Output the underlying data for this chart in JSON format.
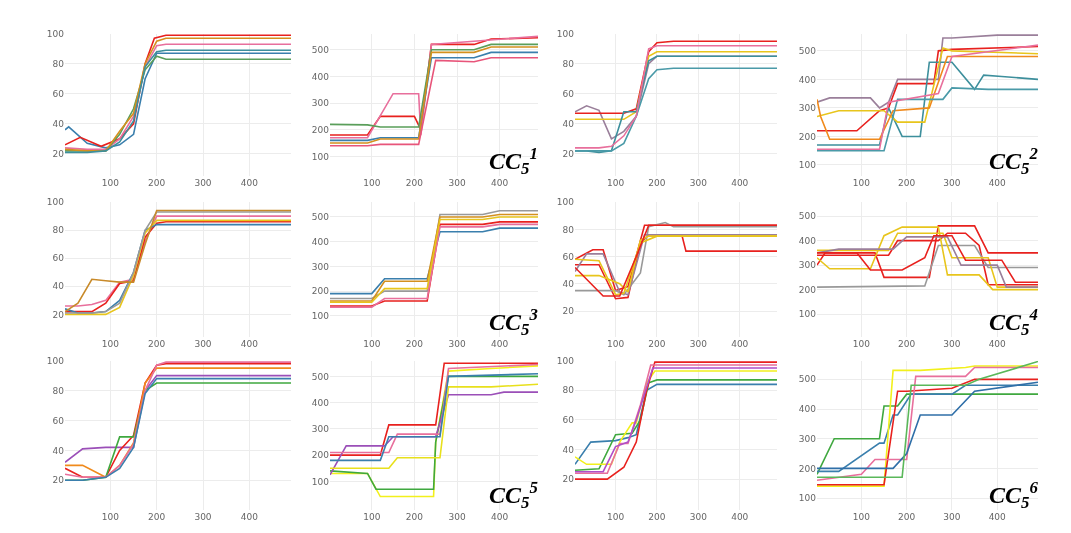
{
  "chart_data": [
    {
      "type": "line",
      "xlim": [
        2,
        490
      ],
      "xticks": [
        100,
        200,
        300,
        400
      ],
      "ylim": [
        5,
        100
      ],
      "yticks": [
        20,
        40,
        60,
        80,
        100
      ],
      "grid": true,
      "series": [
        {
          "color": "#3a7fad",
          "x": [
            2,
            10,
            50,
            90,
            120,
            150,
            175,
            200,
            220,
            490
          ],
          "values": [
            36,
            38,
            27,
            24,
            26,
            33,
            70,
            87,
            87,
            87
          ]
        },
        {
          "color": "#e8211e",
          "x": [
            2,
            35,
            80,
            120,
            150,
            175,
            195,
            220,
            490
          ],
          "values": [
            26,
            31,
            25,
            30,
            40,
            80,
            97,
            99,
            99
          ]
        },
        {
          "color": "#e86f9c",
          "x": [
            2,
            50,
            90,
            120,
            150,
            175,
            200,
            220,
            490
          ],
          "values": [
            24,
            23,
            23,
            30,
            45,
            78,
            92,
            93,
            93
          ]
        },
        {
          "color": "#5a9e5a",
          "x": [
            2,
            50,
            90,
            120,
            150,
            175,
            200,
            220,
            490
          ],
          "values": [
            22,
            22,
            22,
            33,
            50,
            76,
            85,
            83,
            83
          ]
        },
        {
          "color": "#d4901e",
          "x": [
            2,
            50,
            90,
            120,
            150,
            175,
            200,
            220,
            490
          ],
          "values": [
            23,
            22,
            22,
            35,
            47,
            80,
            95,
            97,
            97
          ]
        },
        {
          "color": "#3d8f9c",
          "x": [
            2,
            50,
            90,
            120,
            150,
            175,
            200,
            220,
            490
          ],
          "values": [
            21,
            21,
            22,
            28,
            42,
            78,
            88,
            89,
            89
          ]
        }
      ]
    },
    {
      "type": "line",
      "xlim": [
        2,
        490
      ],
      "xticks": [
        100,
        200,
        300,
        400
      ],
      "ylim": [
        25,
        560
      ],
      "yticks": [
        100,
        200,
        300,
        400,
        500
      ],
      "grid": true,
      "annotations": [
        "CC$_{5}$$^{1}$"
      ],
      "series": [
        {
          "color": "#e8211e",
          "x": [
            2,
            90,
            120,
            200,
            215,
            240,
            260,
            340,
            380,
            490
          ],
          "values": [
            180,
            180,
            250,
            250,
            200,
            520,
            520,
            520,
            540,
            545
          ]
        },
        {
          "color": "#e86f9c",
          "x": [
            2,
            90,
            150,
            210,
            215,
            240,
            490
          ],
          "values": [
            170,
            170,
            335,
            335,
            180,
            520,
            550
          ]
        },
        {
          "color": "#5a9e5a",
          "x": [
            2,
            90,
            120,
            210,
            240,
            340,
            380,
            490
          ],
          "values": [
            220,
            218,
            210,
            210,
            500,
            500,
            520,
            520
          ]
        },
        {
          "color": "#3a7fad",
          "x": [
            2,
            90,
            120,
            210,
            240,
            340,
            380,
            490
          ],
          "values": [
            160,
            160,
            170,
            170,
            470,
            470,
            490,
            490
          ]
        },
        {
          "color": "#d4901e",
          "x": [
            2,
            90,
            120,
            210,
            240,
            340,
            380,
            490
          ],
          "values": [
            150,
            150,
            165,
            165,
            490,
            490,
            510,
            510
          ]
        },
        {
          "color": "#e8557a",
          "x": [
            2,
            90,
            120,
            210,
            250,
            340,
            380,
            490
          ],
          "values": [
            140,
            140,
            145,
            145,
            460,
            455,
            470,
            470
          ]
        }
      ]
    },
    {
      "type": "line",
      "xlim": [
        2,
        490
      ],
      "xticks": [
        100,
        200,
        300,
        400
      ],
      "ylim": [
        5,
        100
      ],
      "yticks": [
        20,
        40,
        60,
        80,
        100
      ],
      "grid": true,
      "series": [
        {
          "color": "#9a7f9a",
          "x": [
            2,
            30,
            60,
            90,
            120,
            150,
            180,
            200,
            240,
            490
          ],
          "values": [
            48,
            52,
            49,
            30,
            35,
            45,
            80,
            85,
            85,
            85
          ]
        },
        {
          "color": "#e8211e",
          "x": [
            2,
            30,
            60,
            90,
            120,
            150,
            180,
            200,
            240,
            490
          ],
          "values": [
            47,
            47,
            47,
            47,
            47,
            50,
            88,
            94,
            95,
            95
          ]
        },
        {
          "color": "#e8c51c",
          "x": [
            2,
            30,
            60,
            90,
            120,
            150,
            180,
            200,
            240,
            490
          ],
          "values": [
            43,
            43,
            43,
            43,
            43,
            48,
            85,
            88,
            88,
            88
          ]
        },
        {
          "color": "#3d8f9c",
          "x": [
            2,
            30,
            60,
            90,
            120,
            150,
            180,
            200,
            240,
            490
          ],
          "values": [
            22,
            22,
            21,
            22,
            48,
            48,
            82,
            85,
            85,
            85
          ]
        },
        {
          "color": "#4a9aa8",
          "x": [
            2,
            30,
            60,
            90,
            120,
            150,
            180,
            200,
            240,
            490
          ],
          "values": [
            22,
            22,
            22,
            22,
            27,
            45,
            70,
            76,
            77,
            77
          ]
        },
        {
          "color": "#e86f9c",
          "x": [
            2,
            30,
            60,
            90,
            120,
            150,
            180,
            200,
            240,
            490
          ],
          "values": [
            24,
            24,
            24,
            25,
            32,
            45,
            90,
            92,
            92,
            92
          ]
        }
      ]
    },
    {
      "type": "line",
      "xlim": [
        2,
        490
      ],
      "xticks": [
        100,
        200,
        300,
        400
      ],
      "ylim": [
        60,
        560
      ],
      "yticks": [
        100,
        200,
        300,
        400,
        500
      ],
      "grid": true,
      "annotations": [
        "CC$_{5}$$^{2}$"
      ],
      "series": [
        {
          "color": "#9a7f9a",
          "x": [
            2,
            30,
            120,
            140,
            160,
            180,
            270,
            280,
            300,
            400,
            490
          ],
          "values": [
            320,
            335,
            335,
            300,
            320,
            400,
            400,
            545,
            545,
            555,
            555
          ]
        },
        {
          "color": "#e8211e",
          "x": [
            2,
            90,
            140,
            160,
            180,
            260,
            270,
            300,
            490
          ],
          "values": [
            220,
            220,
            290,
            300,
            385,
            385,
            500,
            505,
            515
          ]
        },
        {
          "color": "#3d8f9c",
          "x": [
            2,
            140,
            160,
            190,
            230,
            250,
            300,
            350,
            370,
            410,
            490
          ],
          "values": [
            170,
            170,
            300,
            200,
            200,
            460,
            460,
            365,
            415,
            410,
            400
          ]
        },
        {
          "color": "#e8c51c",
          "x": [
            2,
            50,
            110,
            150,
            180,
            240,
            280,
            300,
            490
          ],
          "values": [
            270,
            290,
            290,
            290,
            250,
            250,
            510,
            500,
            490
          ]
        },
        {
          "color": "#f08a1c",
          "x": [
            2,
            10,
            30,
            140,
            170,
            250,
            290,
            490
          ],
          "values": [
            330,
            270,
            190,
            190,
            290,
            300,
            480,
            480
          ]
        },
        {
          "color": "#4a9aa8",
          "x": [
            2,
            150,
            180,
            280,
            300,
            380,
            490
          ],
          "values": [
            150,
            150,
            330,
            330,
            370,
            365,
            365
          ]
        },
        {
          "color": "#e86f9c",
          "x": [
            2,
            140,
            160,
            270,
            300,
            490
          ],
          "values": [
            155,
            155,
            320,
            350,
            480,
            520
          ]
        }
      ]
    },
    {
      "type": "line",
      "xlim": [
        2,
        490
      ],
      "xticks": [
        100,
        200,
        300,
        400
      ],
      "ylim": [
        4,
        100
      ],
      "yticks": [
        20,
        40,
        60,
        80,
        100
      ],
      "grid": true,
      "series": [
        {
          "color": "#e86f9c",
          "x": [
            2,
            30,
            60,
            90,
            120,
            150,
            175,
            200,
            220,
            490
          ],
          "values": [
            26,
            26,
            27,
            30,
            43,
            45,
            72,
            90,
            90,
            90
          ]
        },
        {
          "color": "#e8211e",
          "x": [
            2,
            30,
            60,
            90,
            120,
            150,
            175,
            200,
            220,
            490
          ],
          "values": [
            22,
            22,
            22,
            28,
            42,
            44,
            75,
            85,
            86,
            86
          ]
        },
        {
          "color": "#3a7fad",
          "x": [
            2,
            30,
            60,
            90,
            120,
            150,
            175,
            200,
            220,
            490
          ],
          "values": [
            24,
            21,
            21,
            22,
            30,
            50,
            80,
            84,
            84,
            84
          ]
        },
        {
          "color": "#e8c51c",
          "x": [
            2,
            30,
            60,
            90,
            120,
            150,
            175,
            200,
            220,
            490
          ],
          "values": [
            20,
            20,
            20,
            20,
            25,
            48,
            78,
            87,
            87,
            87
          ]
        },
        {
          "color": "#999999",
          "x": [
            2,
            30,
            60,
            90,
            120,
            150,
            175,
            200,
            220,
            490
          ],
          "values": [
            21,
            21,
            21,
            22,
            28,
            50,
            80,
            93,
            93,
            93
          ]
        },
        {
          "color": "#c88a2a",
          "x": [
            2,
            30,
            60,
            90,
            120,
            150,
            175,
            200,
            220,
            490
          ],
          "values": [
            22,
            28,
            45,
            44,
            43,
            43,
            70,
            94,
            94,
            94
          ]
        }
      ]
    },
    {
      "type": "line",
      "xlim": [
        2,
        490
      ],
      "xticks": [
        100,
        200,
        300,
        400
      ],
      "ylim": [
        15,
        560
      ],
      "yticks": [
        100,
        200,
        300,
        400,
        500
      ],
      "grid": true,
      "annotations": [
        "CC$_{5}$$^{3}$"
      ],
      "series": [
        {
          "color": "#3a7fad",
          "x": [
            2,
            100,
            130,
            230,
            260,
            360,
            400,
            490
          ],
          "values": [
            190,
            190,
            250,
            250,
            440,
            440,
            455,
            455
          ]
        },
        {
          "color": "#999999",
          "x": [
            2,
            100,
            130,
            230,
            260,
            360,
            400,
            490
          ],
          "values": [
            170,
            170,
            200,
            200,
            510,
            510,
            525,
            525
          ]
        },
        {
          "color": "#e8211e",
          "x": [
            2,
            100,
            130,
            230,
            260,
            360,
            400,
            490
          ],
          "values": [
            140,
            140,
            160,
            160,
            470,
            470,
            480,
            480
          ]
        },
        {
          "color": "#d4901e",
          "x": [
            2,
            100,
            130,
            230,
            260,
            360,
            400,
            490
          ],
          "values": [
            160,
            160,
            240,
            240,
            500,
            500,
            510,
            510
          ]
        },
        {
          "color": "#e86f9c",
          "x": [
            2,
            100,
            130,
            230,
            260,
            360,
            400,
            490
          ],
          "values": [
            135,
            135,
            170,
            170,
            460,
            460,
            470,
            470
          ]
        },
        {
          "color": "#e8c51c",
          "x": [
            2,
            100,
            130,
            230,
            260,
            360,
            400,
            490
          ],
          "values": [
            155,
            155,
            210,
            210,
            490,
            490,
            500,
            500
          ]
        }
      ]
    },
    {
      "type": "line",
      "xlim": [
        2,
        490
      ],
      "xticks": [
        100,
        200,
        300,
        400
      ],
      "ylim": [
        1,
        100
      ],
      "yticks": [
        20,
        40,
        60,
        80,
        100
      ],
      "grid": true,
      "series": [
        {
          "color": "#e8211e",
          "x": [
            2,
            45,
            70,
            100,
            130,
            170,
            270,
            280,
            490
          ],
          "values": [
            58,
            65,
            65,
            35,
            38,
            83,
            83,
            83,
            83
          ]
        },
        {
          "color": "#e8211e",
          "x": [
            2,
            60,
            100,
            130,
            160,
            180,
            260,
            270,
            490
          ],
          "values": [
            54,
            54,
            29,
            30,
            70,
            76,
            76,
            64,
            64
          ]
        },
        {
          "color": "#999999",
          "x": [
            2,
            100,
            120,
            160,
            180,
            220,
            240,
            490
          ],
          "values": [
            35,
            35,
            32,
            48,
            82,
            85,
            82,
            82
          ]
        },
        {
          "color": "#9a7f9a",
          "x": [
            2,
            30,
            70,
            110,
            130,
            170,
            490
          ],
          "values": [
            49,
            62,
            62,
            34,
            32,
            76,
            76
          ]
        },
        {
          "color": "#e8c51c",
          "x": [
            2,
            60,
            110,
            130,
            160,
            180,
            490
          ],
          "values": [
            46,
            46,
            40,
            34,
            72,
            75,
            75
          ]
        },
        {
          "color": "#e8c51c",
          "x": [
            2,
            60,
            100,
            120,
            160,
            200,
            490
          ],
          "values": [
            58,
            57,
            32,
            33,
            70,
            75,
            75
          ]
        },
        {
          "color": "#e8211e",
          "x": [
            2,
            70,
            110,
            150,
            180,
            490
          ],
          "values": [
            52,
            31,
            31,
            60,
            83,
            83
          ]
        }
      ]
    },
    {
      "type": "line",
      "xlim": [
        2,
        490
      ],
      "xticks": [
        100,
        200,
        300,
        400
      ],
      "ylim": [
        7,
        557
      ],
      "yticks": [
        100,
        200,
        300,
        400,
        500
      ],
      "grid": true,
      "annotations": [
        "CC$_{5}$$^{4}$"
      ],
      "series": [
        {
          "color": "#e8211e",
          "x": [
            2,
            20,
            130,
            150,
            250,
            270,
            350,
            380,
            490
          ],
          "values": [
            300,
            350,
            350,
            250,
            250,
            460,
            460,
            350,
            350
          ]
        },
        {
          "color": "#e8211e",
          "x": [
            2,
            160,
            180,
            270,
            290,
            330,
            360,
            380,
            490
          ],
          "values": [
            340,
            340,
            400,
            400,
            430,
            430,
            380,
            220,
            220
          ]
        },
        {
          "color": "#999999",
          "x": [
            2,
            240,
            270,
            350,
            380,
            490
          ],
          "values": [
            210,
            215,
            380,
            380,
            290,
            290
          ]
        },
        {
          "color": "#e8c51c",
          "x": [
            2,
            30,
            120,
            150,
            190,
            270,
            290,
            360,
            390,
            490
          ],
          "values": [
            330,
            285,
            285,
            420,
            455,
            455,
            260,
            260,
            200,
            200
          ]
        },
        {
          "color": "#e8c51c",
          "x": [
            2,
            160,
            180,
            280,
            300,
            380,
            400,
            490
          ],
          "values": [
            360,
            360,
            430,
            430,
            330,
            330,
            210,
            210
          ]
        },
        {
          "color": "#9a7f9a",
          "x": [
            2,
            50,
            170,
            200,
            290,
            320,
            400,
            420,
            490
          ],
          "values": [
            350,
            365,
            365,
            415,
            415,
            300,
            300,
            210,
            210
          ]
        },
        {
          "color": "#e8211e",
          "x": [
            2,
            90,
            120,
            190,
            240,
            260,
            300,
            330,
            410,
            440,
            490
          ],
          "values": [
            350,
            350,
            280,
            280,
            330,
            420,
            420,
            320,
            320,
            230,
            230
          ]
        }
      ]
    },
    {
      "type": "line",
      "xlim": [
        2,
        490
      ],
      "xticks": [
        100,
        200,
        300,
        400
      ],
      "ylim": [
        0,
        100
      ],
      "yticks": [
        20,
        40,
        60,
        80,
        100
      ],
      "grid": true,
      "series": [
        {
          "color": "#9b4fb8",
          "x": [
            2,
            40,
            90,
            120,
            150,
            175,
            200,
            220,
            490
          ],
          "values": [
            32,
            41,
            42,
            42,
            42,
            80,
            90,
            90,
            90
          ]
        },
        {
          "color": "#e8211e",
          "x": [
            2,
            40,
            90,
            120,
            150,
            175,
            200,
            220,
            490
          ],
          "values": [
            28,
            22,
            22,
            40,
            50,
            85,
            97,
            98,
            98
          ]
        },
        {
          "color": "#3fa83f",
          "x": [
            2,
            40,
            90,
            120,
            150,
            175,
            200,
            220,
            490
          ],
          "values": [
            20,
            20,
            22,
            49,
            49,
            80,
            85,
            85,
            85
          ]
        },
        {
          "color": "#f08a1c",
          "x": [
            2,
            40,
            90,
            120,
            150,
            175,
            200,
            220,
            490
          ],
          "values": [
            30,
            30,
            22,
            30,
            45,
            85,
            95,
            95,
            95
          ]
        },
        {
          "color": "#e86f9c",
          "x": [
            2,
            40,
            90,
            120,
            150,
            175,
            200,
            220,
            490
          ],
          "values": [
            24,
            22,
            22,
            30,
            44,
            80,
            97,
            99,
            99
          ]
        },
        {
          "color": "#3a7fad",
          "x": [
            2,
            40,
            90,
            120,
            150,
            175,
            200,
            220,
            490
          ],
          "values": [
            20,
            20,
            22,
            28,
            42,
            78,
            88,
            88,
            88
          ]
        }
      ]
    },
    {
      "type": "line",
      "xlim": [
        2,
        490
      ],
      "xticks": [
        100,
        200,
        300,
        400
      ],
      "ylim": [
        -10,
        560
      ],
      "yticks": [
        100,
        200,
        300,
        400,
        500
      ],
      "grid": true,
      "annotations": [
        "CC$_{5}$$^{5}$"
      ],
      "series": [
        {
          "color": "#f2f01c",
          "x": [
            2,
            90,
            120,
            245,
            250,
            280,
            380,
            490
          ],
          "values": [
            130,
            130,
            42,
            42,
            250,
            520,
            530,
            540
          ]
        },
        {
          "color": "#3fa83f",
          "x": [
            2,
            90,
            110,
            245,
            250,
            280,
            490
          ],
          "values": [
            140,
            130,
            70,
            70,
            250,
            500,
            500
          ]
        },
        {
          "color": "#e8211e",
          "x": [
            2,
            120,
            140,
            250,
            270,
            490
          ],
          "values": [
            200,
            200,
            315,
            315,
            550,
            550
          ]
        },
        {
          "color": "#9b4fb8",
          "x": [
            2,
            40,
            130,
            150,
            250,
            280,
            380,
            410,
            490
          ],
          "values": [
            125,
            235,
            235,
            270,
            270,
            430,
            430,
            440,
            440
          ]
        },
        {
          "color": "#e86f9c",
          "x": [
            2,
            140,
            160,
            260,
            280,
            490
          ],
          "values": [
            210,
            210,
            280,
            280,
            530,
            545
          ]
        },
        {
          "color": "#e8e01c",
          "x": [
            2,
            140,
            160,
            260,
            280,
            380,
            490
          ],
          "values": [
            150,
            150,
            190,
            190,
            460,
            460,
            470
          ]
        },
        {
          "color": "#3a7fad",
          "x": [
            2,
            120,
            140,
            260,
            280,
            490
          ],
          "values": [
            180,
            180,
            270,
            270,
            500,
            510
          ]
        }
      ]
    },
    {
      "type": "line",
      "xlim": [
        2,
        490
      ],
      "xticks": [
        100,
        200,
        300,
        400
      ],
      "ylim": [
        -1,
        100
      ],
      "yticks": [
        20,
        40,
        60,
        80,
        100
      ],
      "grid": true,
      "series": [
        {
          "color": "#3a7fad",
          "x": [
            2,
            40,
            100,
            130,
            150,
            175,
            200,
            220,
            490
          ],
          "values": [
            30,
            45,
            46,
            48,
            50,
            80,
            84,
            84,
            84
          ]
        },
        {
          "color": "#3fa83f",
          "x": [
            2,
            60,
            100,
            140,
            160,
            180,
            200,
            490
          ],
          "values": [
            26,
            27,
            50,
            51,
            60,
            85,
            87,
            87
          ]
        },
        {
          "color": "#f2f01c",
          "x": [
            2,
            30,
            90,
            110,
            140,
            150,
            175,
            195,
            490
          ],
          "values": [
            35,
            30,
            30,
            45,
            58,
            58,
            85,
            93,
            93
          ]
        },
        {
          "color": "#e8211e",
          "x": [
            2,
            80,
            120,
            150,
            175,
            195,
            490
          ],
          "values": [
            20,
            20,
            28,
            45,
            80,
            99,
            99
          ]
        },
        {
          "color": "#e86f9c",
          "x": [
            2,
            80,
            110,
            130,
            160,
            185,
            490
          ],
          "values": [
            24,
            24,
            44,
            44,
            70,
            97,
            97
          ]
        },
        {
          "color": "#b04fc8",
          "x": [
            2,
            70,
            100,
            130,
            150,
            190,
            490
          ],
          "values": [
            25,
            25,
            42,
            45,
            60,
            95,
            95
          ]
        }
      ]
    },
    {
      "type": "line",
      "xlim": [
        2,
        490
      ],
      "xticks": [
        100,
        200,
        300,
        400
      ],
      "ylim": [
        59,
        563
      ],
      "yticks": [
        100,
        200,
        300,
        400,
        500
      ],
      "grid": true,
      "annotations": [
        "CC$_{5}$$^{6}$"
      ],
      "series": [
        {
          "color": "#3fa83f",
          "x": [
            2,
            40,
            140,
            150,
            180,
            200,
            490
          ],
          "values": [
            180,
            300,
            300,
            410,
            410,
            450,
            450
          ]
        },
        {
          "color": "#3a7fad",
          "x": [
            2,
            50,
            140,
            150,
            170,
            180,
            210,
            300,
            330,
            490
          ],
          "values": [
            190,
            190,
            285,
            285,
            380,
            380,
            450,
            450,
            480,
            480
          ]
        },
        {
          "color": "#f2f01c",
          "x": [
            2,
            150,
            170,
            230,
            330,
            350,
            490
          ],
          "values": [
            140,
            140,
            530,
            530,
            540,
            545,
            545
          ]
        },
        {
          "color": "#e8211e",
          "x": [
            2,
            150,
            180,
            200,
            300,
            350,
            490
          ],
          "values": [
            145,
            145,
            460,
            460,
            470,
            500,
            500
          ]
        },
        {
          "color": "#e86f9c",
          "x": [
            2,
            100,
            130,
            200,
            220,
            330,
            350,
            490
          ],
          "values": [
            160,
            180,
            230,
            230,
            510,
            510,
            540,
            540
          ]
        },
        {
          "color": "#2f6fa8",
          "x": [
            2,
            170,
            200,
            230,
            300,
            350,
            490
          ],
          "values": [
            200,
            200,
            250,
            380,
            380,
            460,
            490
          ]
        },
        {
          "color": "#5ab85a",
          "x": [
            2,
            190,
            210,
            330,
            360,
            490
          ],
          "values": [
            170,
            170,
            480,
            480,
            500,
            560
          ]
        }
      ]
    }
  ]
}
